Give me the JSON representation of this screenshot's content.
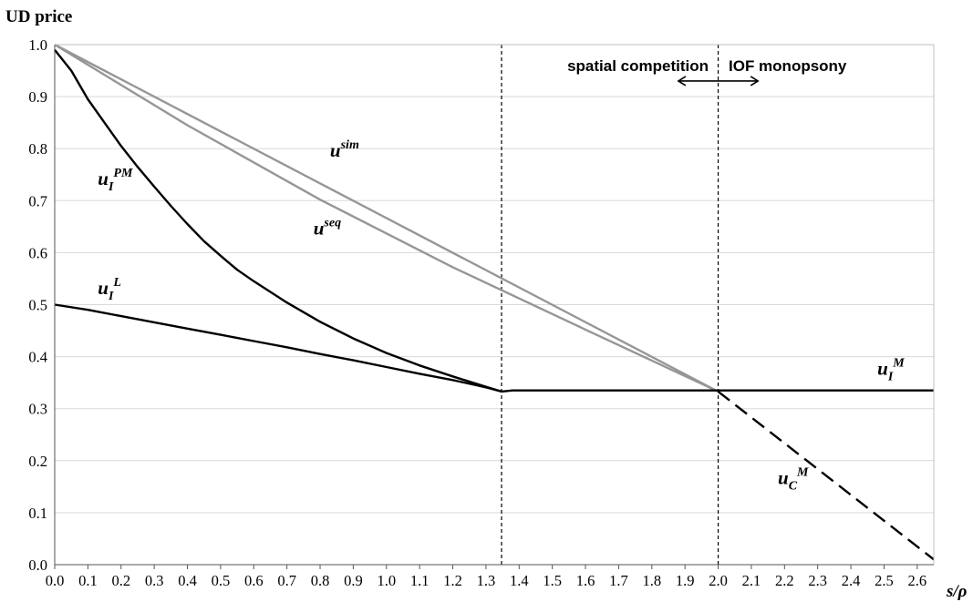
{
  "chart_data": {
    "type": "line",
    "ylabel": "UD price",
    "xlabel": "s/ρ",
    "xlim": [
      0,
      2.65
    ],
    "ylim": [
      0,
      1
    ],
    "x_ticks": [
      "0.0",
      "0.1",
      "0.2",
      "0.3",
      "0.4",
      "0.5",
      "0.6",
      "0.7",
      "0.8",
      "0.9",
      "1.0",
      "1.1",
      "1.2",
      "1.3",
      "1.4",
      "1.5",
      "1.6",
      "1.7",
      "1.8",
      "1.9",
      "2.0",
      "2.1",
      "2.2",
      "2.3",
      "2.4",
      "2.5",
      "2.6"
    ],
    "y_ticks": [
      "0.0",
      "0.1",
      "0.2",
      "0.3",
      "0.4",
      "0.5",
      "0.6",
      "0.7",
      "0.8",
      "0.9",
      "1.0"
    ],
    "grid": "horizontal",
    "region_labels": {
      "left": "spatial competition",
      "right": "IOF monopsony"
    },
    "vlines": [
      1.347,
      2.0
    ],
    "region_arrow": {
      "from": 1.88,
      "to": 2.12,
      "y": 0.93
    },
    "series": [
      {
        "name": "u_I^PM",
        "label": {
          "base": "u",
          "sub": "I",
          "sup": "PM"
        },
        "color": "#000000",
        "style": "solid",
        "points": [
          [
            0,
            0.99
          ],
          [
            0.05,
            0.95
          ],
          [
            0.1,
            0.895
          ],
          [
            0.15,
            0.85
          ],
          [
            0.2,
            0.805
          ],
          [
            0.25,
            0.765
          ],
          [
            0.3,
            0.727
          ],
          [
            0.35,
            0.69
          ],
          [
            0.4,
            0.655
          ],
          [
            0.45,
            0.622
          ],
          [
            0.5,
            0.594
          ],
          [
            0.55,
            0.567
          ],
          [
            0.6,
            0.545
          ],
          [
            0.7,
            0.504
          ],
          [
            0.8,
            0.467
          ],
          [
            0.9,
            0.435
          ],
          [
            1.0,
            0.407
          ],
          [
            1.1,
            0.383
          ],
          [
            1.2,
            0.362
          ],
          [
            1.3,
            0.342
          ],
          [
            1.347,
            0.333
          ]
        ]
      },
      {
        "name": "u_I^L",
        "label": {
          "base": "u",
          "sub": "I",
          "sup": "L"
        },
        "color": "#000000",
        "style": "solid",
        "points": [
          [
            0,
            0.5
          ],
          [
            0.1,
            0.49
          ],
          [
            0.2,
            0.478
          ],
          [
            0.3,
            0.466
          ],
          [
            0.4,
            0.454
          ],
          [
            0.5,
            0.442
          ],
          [
            0.6,
            0.43
          ],
          [
            0.7,
            0.418
          ],
          [
            0.8,
            0.405
          ],
          [
            0.9,
            0.393
          ],
          [
            1.0,
            0.38
          ],
          [
            1.1,
            0.367
          ],
          [
            1.2,
            0.355
          ],
          [
            1.3,
            0.341
          ],
          [
            1.347,
            0.333
          ]
        ]
      },
      {
        "name": "u^sim",
        "label": {
          "base": "u",
          "sub": "",
          "sup": "sim"
        },
        "color": "#969696",
        "style": "solid",
        "points": [
          [
            0,
            1.0
          ],
          [
            2.0,
            0.333
          ]
        ]
      },
      {
        "name": "u^seq",
        "label": {
          "base": "u",
          "sub": "",
          "sup": "seq"
        },
        "color": "#969696",
        "style": "solid",
        "points": [
          [
            0,
            1.0
          ],
          [
            0.4,
            0.845
          ],
          [
            0.8,
            0.702
          ],
          [
            1.2,
            0.572
          ],
          [
            1.6,
            0.452
          ],
          [
            2.0,
            0.333
          ]
        ]
      },
      {
        "name": "u_I^M",
        "label": {
          "base": "u",
          "sub": "I",
          "sup": "M"
        },
        "color": "#000000",
        "style": "solid",
        "points": [
          [
            1.347,
            0.333
          ],
          [
            1.38,
            0.335
          ],
          [
            2.65,
            0.335
          ]
        ]
      },
      {
        "name": "u_C^M",
        "label": {
          "base": "u",
          "sub": "C",
          "sup": "M"
        },
        "color": "#000000",
        "style": "dashed",
        "points": [
          [
            2.0,
            0.333
          ],
          [
            2.65,
            0.01
          ]
        ]
      }
    ]
  }
}
